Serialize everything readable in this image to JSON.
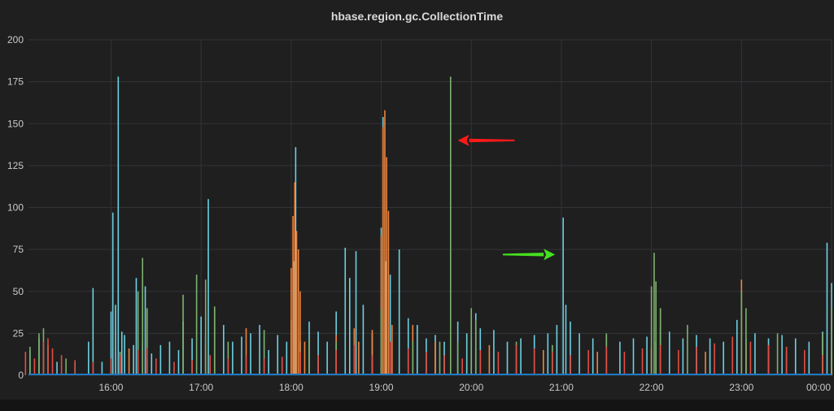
{
  "panel": {
    "title": "hbase.region.gc.CollectionTime"
  },
  "chart_data": {
    "type": "line",
    "title": "hbase.region.gc.CollectionTime",
    "xlabel": "",
    "ylabel": "",
    "ylim": [
      0,
      200
    ],
    "y_ticks": [
      "0",
      "25",
      "50",
      "75",
      "100",
      "125",
      "150",
      "175",
      "200"
    ],
    "x_ticks": [
      "16:00",
      "17:00",
      "18:00",
      "19:00",
      "20:00",
      "21:00",
      "22:00",
      "23:00",
      "00:00"
    ],
    "grid": true,
    "colors": {
      "blue": "#6ed0e0",
      "orange": "#ef843c",
      "green": "#7eb26d",
      "red": "#e24d42",
      "baseline": "#1f78c1",
      "arrow_red": "#ff1a1a",
      "arrow_green": "#45e01f"
    },
    "series": [
      {
        "color": "blue",
        "points": [
          [
            15.1,
            15
          ],
          [
            15.2,
            22
          ],
          [
            15.4,
            8
          ],
          [
            15.6,
            7
          ],
          [
            15.75,
            20
          ],
          [
            15.8,
            52
          ],
          [
            15.9,
            8
          ],
          [
            16.0,
            38
          ],
          [
            16.02,
            97
          ],
          [
            16.05,
            42
          ],
          [
            16.08,
            178
          ],
          [
            16.12,
            26
          ],
          [
            16.15,
            24
          ],
          [
            16.25,
            18
          ],
          [
            16.28,
            58
          ],
          [
            16.35,
            20
          ],
          [
            16.38,
            53
          ],
          [
            16.45,
            13
          ],
          [
            16.55,
            18
          ],
          [
            16.65,
            20
          ],
          [
            16.75,
            15
          ],
          [
            16.8,
            32
          ],
          [
            16.9,
            22
          ],
          [
            17.0,
            35
          ],
          [
            17.05,
            25
          ],
          [
            17.08,
            105
          ],
          [
            17.15,
            40
          ],
          [
            17.25,
            30
          ],
          [
            17.35,
            20
          ],
          [
            17.45,
            23
          ],
          [
            17.55,
            25
          ],
          [
            17.65,
            30
          ],
          [
            17.75,
            15
          ],
          [
            17.85,
            24
          ],
          [
            17.95,
            20
          ],
          [
            18.0,
            33
          ],
          [
            18.03,
            68
          ],
          [
            18.05,
            136
          ],
          [
            18.1,
            20
          ],
          [
            18.2,
            32
          ],
          [
            18.3,
            26
          ],
          [
            18.4,
            20
          ],
          [
            18.5,
            38
          ],
          [
            18.6,
            76
          ],
          [
            18.65,
            58
          ],
          [
            18.72,
            74
          ],
          [
            18.8,
            42
          ],
          [
            18.9,
            25
          ],
          [
            19.0,
            88
          ],
          [
            19.02,
            154
          ],
          [
            19.05,
            68
          ],
          [
            19.1,
            60
          ],
          [
            19.2,
            75
          ],
          [
            19.3,
            34
          ],
          [
            19.4,
            30
          ],
          [
            19.5,
            22
          ],
          [
            19.6,
            24
          ],
          [
            19.7,
            20
          ],
          [
            19.85,
            32
          ],
          [
            19.95,
            25
          ],
          [
            20.0,
            22
          ],
          [
            20.05,
            37
          ],
          [
            20.1,
            28
          ],
          [
            20.25,
            27
          ],
          [
            20.4,
            20
          ],
          [
            20.55,
            22
          ],
          [
            20.7,
            24
          ],
          [
            20.85,
            25
          ],
          [
            20.95,
            30
          ],
          [
            21.02,
            94
          ],
          [
            21.05,
            42
          ],
          [
            21.1,
            32
          ],
          [
            21.2,
            25
          ],
          [
            21.35,
            22
          ],
          [
            21.5,
            24
          ],
          [
            21.65,
            20
          ],
          [
            21.8,
            22
          ],
          [
            21.95,
            23
          ],
          [
            22.05,
            20
          ],
          [
            22.1,
            29
          ],
          [
            22.2,
            26
          ],
          [
            22.35,
            22
          ],
          [
            22.5,
            24
          ],
          [
            22.65,
            22
          ],
          [
            22.8,
            20
          ],
          [
            22.95,
            33
          ],
          [
            23.05,
            22
          ],
          [
            23.15,
            25
          ],
          [
            23.3,
            22
          ],
          [
            23.45,
            24
          ],
          [
            23.6,
            22
          ],
          [
            23.75,
            20
          ],
          [
            23.9,
            26
          ],
          [
            23.95,
            79
          ],
          [
            24.0,
            55
          ],
          [
            24.05,
            50
          ],
          [
            24.1,
            33
          ]
        ]
      },
      {
        "color": "orange",
        "points": [
          [
            16.2,
            16
          ],
          [
            16.4,
            10
          ],
          [
            17.05,
            18
          ],
          [
            17.5,
            28
          ],
          [
            18.0,
            64
          ],
          [
            18.02,
            95
          ],
          [
            18.04,
            115
          ],
          [
            18.06,
            86
          ],
          [
            18.08,
            75
          ],
          [
            18.1,
            50
          ],
          [
            18.15,
            20
          ],
          [
            18.5,
            24
          ],
          [
            18.7,
            28
          ],
          [
            18.75,
            20
          ],
          [
            18.9,
            27
          ],
          [
            19.0,
            83
          ],
          [
            19.02,
            148
          ],
          [
            19.04,
            158
          ],
          [
            19.06,
            130
          ],
          [
            19.08,
            98
          ],
          [
            19.12,
            30
          ],
          [
            19.35,
            30
          ],
          [
            19.6,
            20
          ],
          [
            20.2,
            18
          ],
          [
            20.8,
            15
          ],
          [
            21.4,
            14
          ],
          [
            22.0,
            16
          ],
          [
            22.6,
            14
          ],
          [
            23.0,
            57
          ],
          [
            23.05,
            18
          ],
          [
            23.5,
            14
          ],
          [
            24.0,
            16
          ]
        ]
      },
      {
        "color": "green",
        "points": [
          [
            15.1,
            17
          ],
          [
            15.2,
            25
          ],
          [
            15.25,
            28
          ],
          [
            15.3,
            18
          ],
          [
            15.5,
            10
          ],
          [
            16.1,
            14
          ],
          [
            16.3,
            50
          ],
          [
            16.35,
            70
          ],
          [
            16.4,
            40
          ],
          [
            16.8,
            48
          ],
          [
            16.95,
            60
          ],
          [
            17.05,
            57
          ],
          [
            17.15,
            41
          ],
          [
            17.3,
            20
          ],
          [
            17.7,
            27
          ],
          [
            18.2,
            22
          ],
          [
            18.5,
            20
          ],
          [
            19.0,
            40
          ],
          [
            19.35,
            20
          ],
          [
            19.65,
            20
          ],
          [
            19.77,
            178
          ],
          [
            19.85,
            20
          ],
          [
            20.0,
            40
          ],
          [
            20.05,
            33
          ],
          [
            20.5,
            20
          ],
          [
            20.9,
            18
          ],
          [
            21.5,
            25
          ],
          [
            22.0,
            53
          ],
          [
            22.03,
            73
          ],
          [
            22.05,
            56
          ],
          [
            22.1,
            40
          ],
          [
            22.4,
            30
          ],
          [
            23.0,
            50
          ],
          [
            23.05,
            40
          ],
          [
            23.4,
            25
          ],
          [
            23.9,
            25
          ],
          [
            24.0,
            40
          ],
          [
            24.05,
            42
          ]
        ]
      },
      {
        "color": "red",
        "points": [
          [
            15.05,
            14
          ],
          [
            15.15,
            10
          ],
          [
            15.25,
            20
          ],
          [
            15.3,
            22
          ],
          [
            15.35,
            16
          ],
          [
            15.45,
            12
          ],
          [
            15.6,
            9
          ],
          [
            15.8,
            8
          ],
          [
            16.0,
            10
          ],
          [
            16.1,
            12
          ],
          [
            16.3,
            15
          ],
          [
            16.4,
            16
          ],
          [
            16.5,
            10
          ],
          [
            16.7,
            8
          ],
          [
            16.9,
            9
          ],
          [
            17.1,
            12
          ],
          [
            17.3,
            10
          ],
          [
            17.5,
            12
          ],
          [
            17.7,
            10
          ],
          [
            17.9,
            11
          ],
          [
            18.1,
            14
          ],
          [
            18.3,
            12
          ],
          [
            18.5,
            15
          ],
          [
            18.7,
            18
          ],
          [
            18.9,
            12
          ],
          [
            19.1,
            20
          ],
          [
            19.3,
            16
          ],
          [
            19.5,
            14
          ],
          [
            19.7,
            12
          ],
          [
            19.9,
            10
          ],
          [
            20.1,
            15
          ],
          [
            20.3,
            14
          ],
          [
            20.5,
            18
          ],
          [
            20.7,
            16
          ],
          [
            20.9,
            14
          ],
          [
            21.1,
            12
          ],
          [
            21.3,
            15
          ],
          [
            21.5,
            17
          ],
          [
            21.7,
            14
          ],
          [
            21.9,
            16
          ],
          [
            22.1,
            18
          ],
          [
            22.3,
            15
          ],
          [
            22.5,
            17
          ],
          [
            22.7,
            19
          ],
          [
            22.9,
            23
          ],
          [
            23.1,
            20
          ],
          [
            23.3,
            18
          ],
          [
            23.5,
            17
          ],
          [
            23.7,
            15
          ],
          [
            23.9,
            12
          ],
          [
            24.1,
            10
          ]
        ]
      }
    ],
    "annotations": [
      {
        "type": "arrow",
        "color": "arrow_red",
        "direction": "left",
        "from": [
          20.48,
          140
        ],
        "to": [
          19.85,
          140
        ]
      },
      {
        "type": "arrow",
        "color": "arrow_green",
        "direction": "right",
        "from": [
          20.35,
          72
        ],
        "to": [
          20.93,
          72
        ]
      }
    ]
  }
}
